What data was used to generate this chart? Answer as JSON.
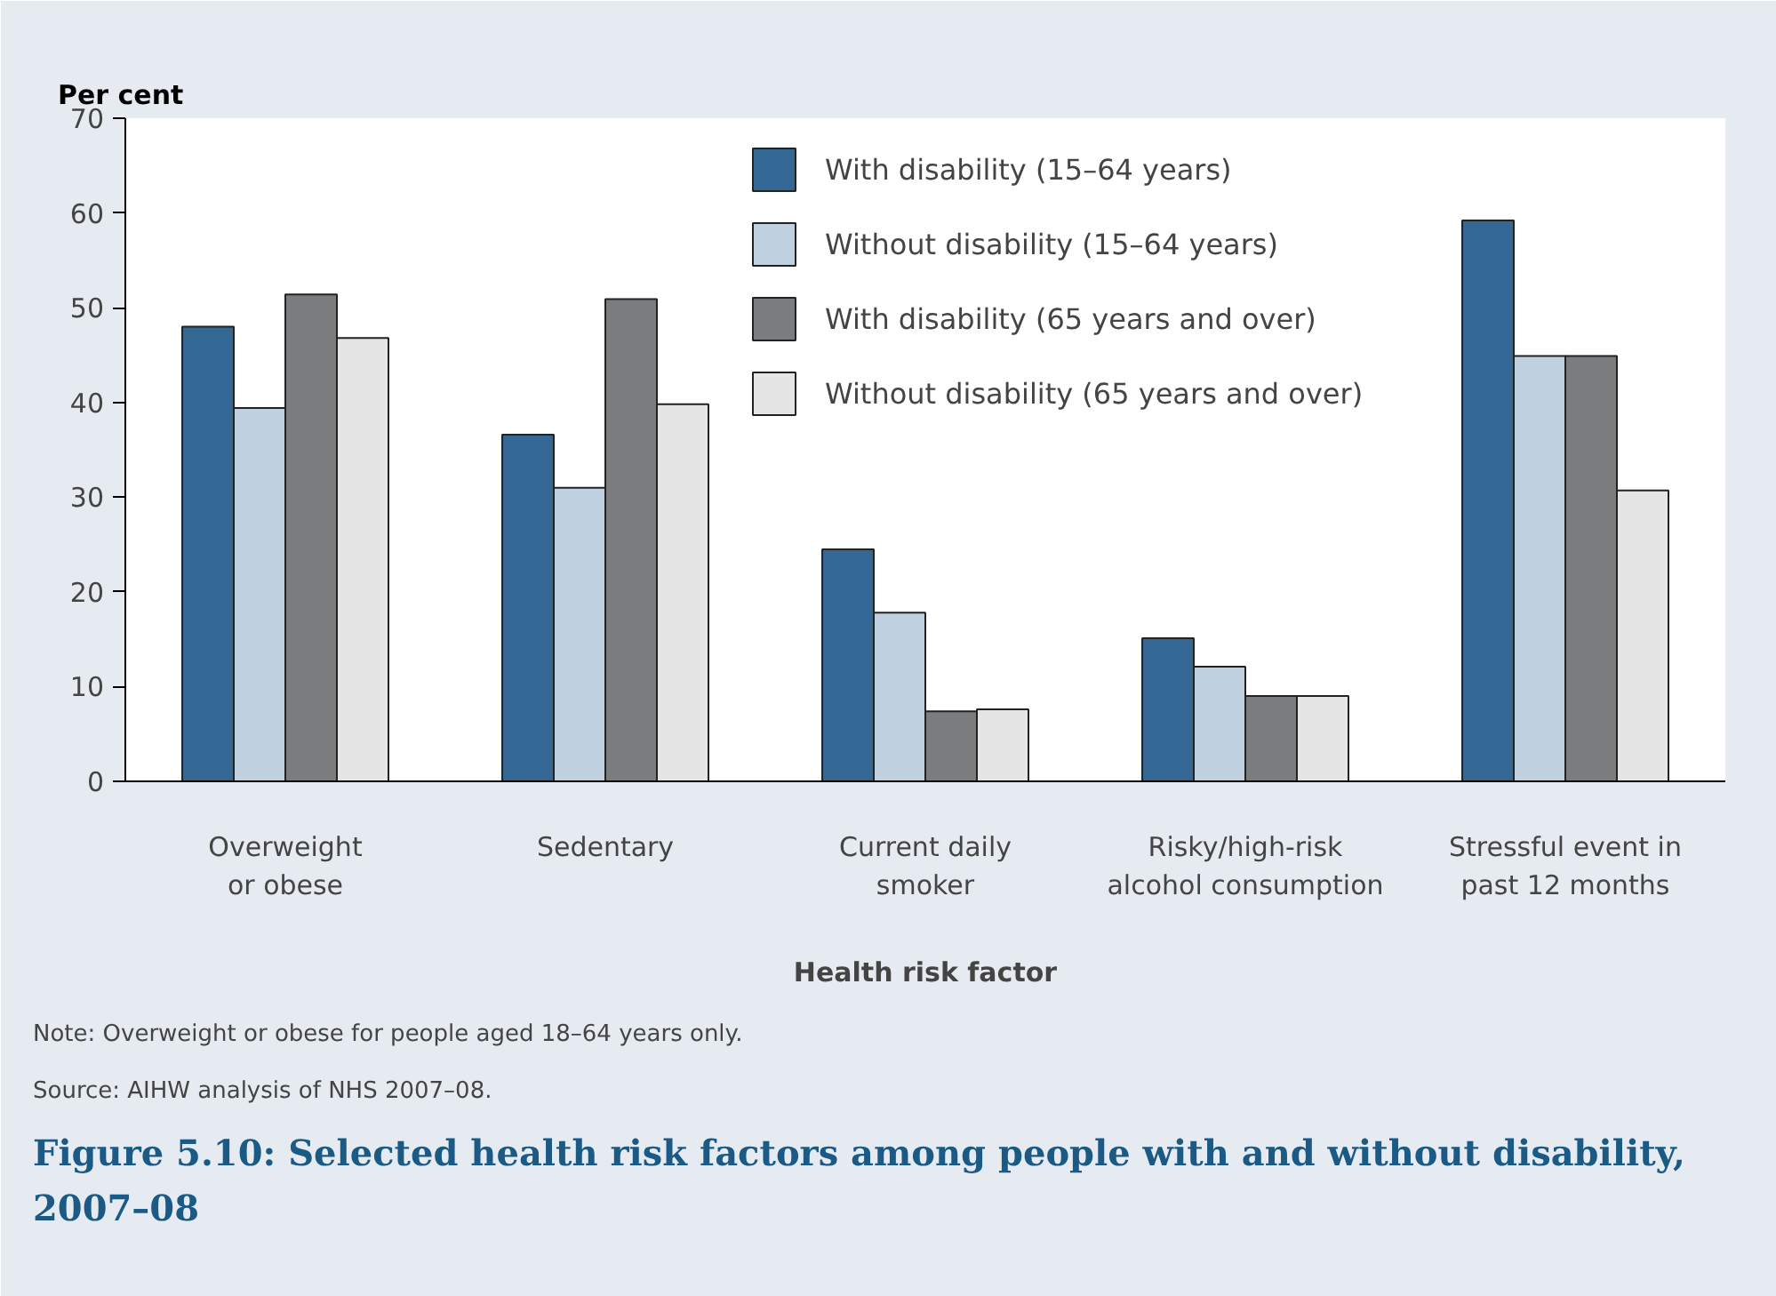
{
  "chart_data": {
    "type": "bar",
    "title": "Figure 5.10: Selected health risk factors among people with and without disability, 2007–08",
    "xlabel": "Health risk factor",
    "ylabel": "Per cent",
    "categories": [
      "Overweight\nor obese",
      "Sedentary",
      "Current daily\nsmoker",
      "Risky/high-risk\nalcohol consumption",
      "Stressful event in\npast 12 months"
    ],
    "series": [
      {
        "name": "With disability (15–64 years)",
        "color": "#336895",
        "values": [
          48.0,
          36.6,
          24.5,
          15.1,
          59.2
        ]
      },
      {
        "name": "Without disability (15–64 years)",
        "color": "#bfd1e0",
        "values": [
          39.4,
          31.0,
          17.8,
          12.1,
          44.9
        ]
      },
      {
        "name": "With disability (65 years and over)",
        "color": "#7b7c7e",
        "values": [
          51.4,
          50.9,
          7.4,
          9.0,
          44.9
        ]
      },
      {
        "name": "Without disability (65 years and over)",
        "color": "#e5e5e6",
        "values": [
          46.8,
          39.8,
          7.6,
          9.0,
          30.7
        ]
      }
    ],
    "ylim": [
      0,
      70
    ],
    "yticks": [
      0,
      10,
      20,
      30,
      40,
      50,
      60,
      70
    ],
    "grid": false,
    "legend": "top right",
    "annotations": [
      "Note: Overweight or obese for people aged 18–64 years only.",
      "Source: AIHW analysis of NHS 2007–08."
    ]
  }
}
